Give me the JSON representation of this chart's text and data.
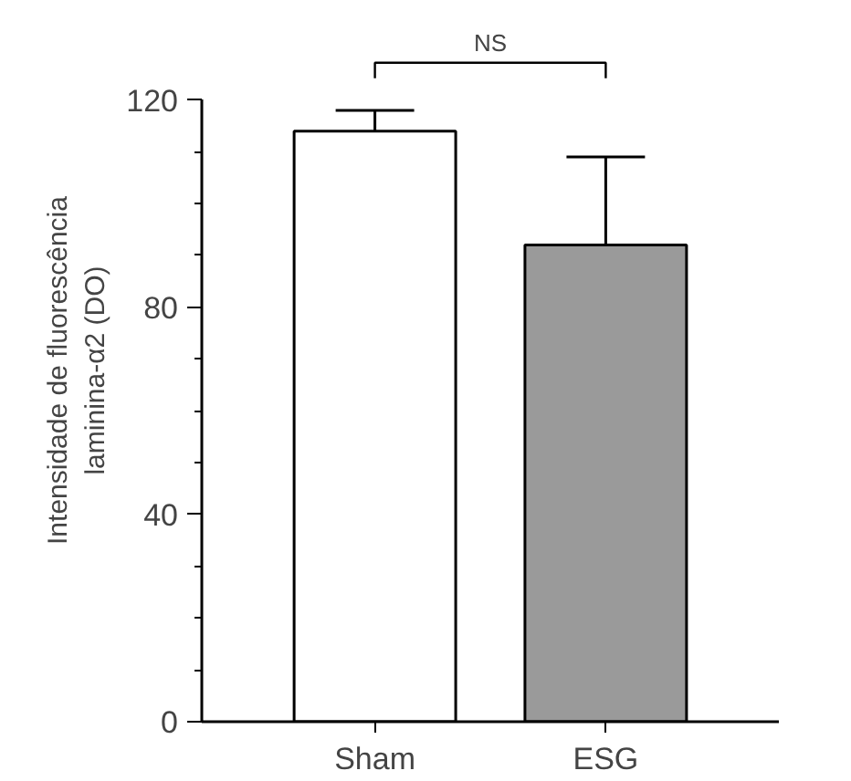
{
  "chart_data": {
    "type": "bar",
    "ylabel": "Intensidade de fluorescência\nlaminina-α2 (DO)",
    "categories": [
      "Sham",
      "ESG"
    ],
    "values": [
      114,
      92
    ],
    "colors": [
      "#ffffff",
      "#9a9a9a"
    ],
    "errors": [
      [
        114,
        118
      ],
      [
        92,
        109
      ]
    ],
    "ylim": [
      0,
      120
    ],
    "yticks": [
      0,
      {
        "value": 10,
        "label": null
      },
      {
        "value": 20,
        "label": null
      },
      {
        "value": 30,
        "label": null
      },
      40,
      {
        "value": 50,
        "label": null
      },
      {
        "value": 60,
        "label": null
      },
      {
        "value": 70,
        "label": null
      },
      80,
      {
        "value": 90,
        "label": null
      },
      {
        "value": 100,
        "label": null
      },
      {
        "value": 110,
        "label": null
      },
      120
    ],
    "annotations": [
      "NS"
    ],
    "grid": false
  }
}
